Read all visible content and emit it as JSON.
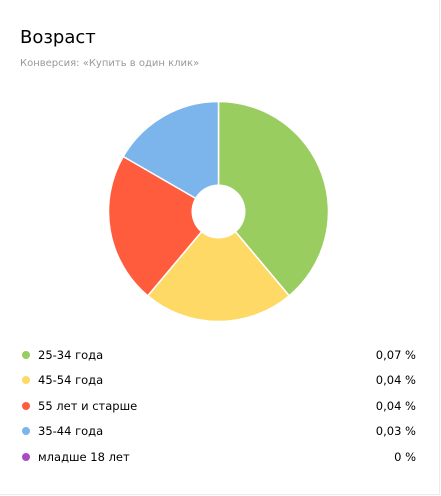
{
  "widget": {
    "title": "Возраст",
    "subtitle": "Конверсия: «Купить в один клик»"
  },
  "chart_data": {
    "type": "pie",
    "donut": true,
    "start": "12 o'clock, clockwise",
    "series": [
      {
        "name": "25-34 года",
        "share": 0.3889,
        "value_label": "0,07 %",
        "color": "#9acd5f"
      },
      {
        "name": "45-54 года",
        "share": 0.2222,
        "value_label": "0,04 %",
        "color": "#ffd966"
      },
      {
        "name": "55 лет и старше",
        "share": 0.2222,
        "value_label": "0,04 %",
        "color": "#ff5c3e"
      },
      {
        "name": "35-44 года",
        "share": 0.1667,
        "value_label": "0,03 %",
        "color": "#7cb5ec"
      },
      {
        "name": "младше 18 лет",
        "share": 0,
        "value_label": "0 %",
        "color": "#a84cc4"
      }
    ]
  }
}
